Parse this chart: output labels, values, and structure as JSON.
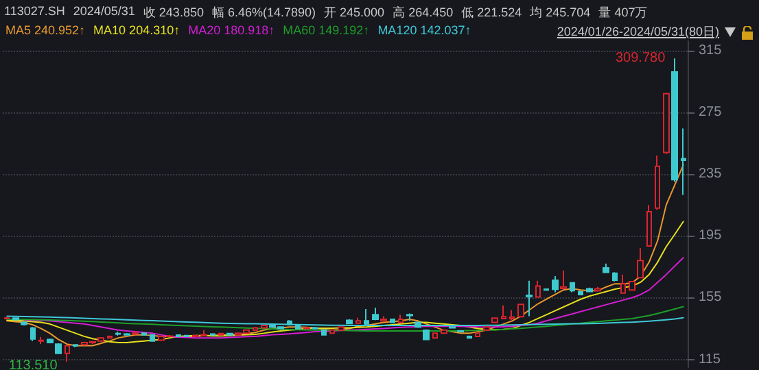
{
  "chart_data": {
    "type": "candlestick",
    "title": "113027.SH",
    "subtitle": "2024/01/26-2024/05/31(80日)",
    "categories": [
      null,
      null,
      null,
      null,
      null,
      null,
      null,
      null,
      null,
      null,
      null,
      null,
      null,
      null,
      null,
      null,
      null,
      null,
      null,
      null,
      null,
      null,
      null,
      null,
      null,
      null,
      null,
      null,
      null,
      null,
      null,
      null,
      null,
      null,
      null,
      null,
      null,
      null,
      null,
      null,
      null,
      null,
      null,
      null,
      null,
      null,
      null,
      null,
      null,
      null,
      null,
      null,
      null,
      null,
      null,
      null,
      null,
      null,
      null,
      null,
      null,
      null,
      null,
      null,
      null,
      null,
      null,
      null,
      null,
      null,
      null,
      null,
      null,
      null,
      null,
      null,
      null,
      null,
      null,
      null
    ],
    "ohlc": [
      [
        141.5,
        142.5,
        141,
        141.8
      ],
      [
        141.8,
        142,
        140.5,
        140.8
      ],
      [
        139,
        139.5,
        137,
        137.7
      ],
      [
        135.4,
        136,
        126.9,
        128.3
      ],
      [
        127,
        129.6,
        125,
        127.4
      ],
      [
        128,
        128.5,
        125.5,
        126
      ],
      [
        125,
        125.5,
        118.5,
        119
      ],
      [
        119,
        124.5,
        113.51,
        124
      ],
      [
        124.5,
        125,
        123,
        123.8
      ],
      [
        124.5,
        126.5,
        124,
        126
      ],
      [
        126,
        127,
        125,
        126.5
      ],
      [
        127,
        129.5,
        126.5,
        129
      ],
      [
        129,
        130.5,
        128.5,
        130
      ],
      [
        131.8,
        133,
        130.5,
        131.5
      ],
      [
        131.5,
        132,
        130.5,
        131
      ],
      [
        131.5,
        133.5,
        131,
        132
      ],
      [
        132,
        132.5,
        130.5,
        131
      ],
      [
        131,
        131.5,
        126.5,
        127
      ],
      [
        127.5,
        130.5,
        127,
        130
      ],
      [
        130,
        130.8,
        129.5,
        130.2
      ],
      [
        130.8,
        131,
        129.5,
        130
      ],
      [
        130.5,
        131,
        129.8,
        130
      ],
      [
        130,
        130.8,
        129.5,
        130.5
      ],
      [
        130.5,
        134,
        130,
        131
      ],
      [
        131.5,
        131.8,
        130.5,
        131
      ],
      [
        131,
        132,
        130.8,
        131.8
      ],
      [
        131.8,
        132,
        130.8,
        131
      ],
      [
        131,
        132.5,
        130.8,
        132
      ],
      [
        132,
        134.5,
        131.8,
        134
      ],
      [
        134,
        136,
        133.5,
        135.5
      ],
      [
        135.5,
        137.5,
        135,
        137
      ],
      [
        137,
        137.5,
        135.5,
        136
      ],
      [
        136,
        136.5,
        134.5,
        135
      ],
      [
        139.8,
        140.5,
        137,
        137.6
      ],
      [
        137,
        137.5,
        134.5,
        135
      ],
      [
        135,
        136,
        134.5,
        135.5
      ],
      [
        135.5,
        136,
        134.5,
        135
      ],
      [
        133.9,
        134.5,
        130.5,
        131
      ],
      [
        132,
        134.5,
        131.5,
        134
      ],
      [
        134,
        136.5,
        133.5,
        136
      ],
      [
        140.4,
        141,
        138,
        138.3
      ],
      [
        138.5,
        142,
        138,
        140
      ],
      [
        140,
        147.7,
        137.5,
        138
      ],
      [
        144,
        148.6,
        140.5,
        141
      ],
      [
        140,
        143,
        139.5,
        141
      ],
      [
        141,
        141.5,
        138.5,
        139
      ],
      [
        139,
        144,
        138.5,
        141
      ],
      [
        144,
        144.8,
        140,
        143.5
      ],
      [
        139,
        139.5,
        135.5,
        136
      ],
      [
        133.9,
        134.5,
        127.5,
        128
      ],
      [
        129,
        132.5,
        128.5,
        132
      ],
      [
        132,
        134.5,
        131.5,
        134
      ],
      [
        136,
        136.5,
        135,
        135.5
      ],
      [
        133.5,
        134,
        132.5,
        133
      ],
      [
        130,
        130.5,
        128.5,
        129
      ],
      [
        130,
        132.5,
        129.5,
        132
      ],
      [
        134,
        136.5,
        133.5,
        136
      ],
      [
        139,
        142,
        138.5,
        141.8
      ],
      [
        141.5,
        150,
        141,
        142.7
      ],
      [
        141.5,
        147,
        140.5,
        142.5
      ],
      [
        142.7,
        151,
        142.5,
        150.7
      ],
      [
        156.5,
        166,
        143,
        155.8
      ],
      [
        155.4,
        166,
        155,
        162.5
      ],
      [
        160.5,
        161,
        159.5,
        160
      ],
      [
        166.3,
        169,
        158.5,
        160.4
      ],
      [
        161,
        172.6,
        160.5,
        162
      ],
      [
        164.6,
        165,
        158.5,
        159.5
      ],
      [
        158.9,
        159.5,
        156.5,
        157
      ],
      [
        160.8,
        161.5,
        158.5,
        159
      ],
      [
        159.5,
        162,
        159,
        160.8
      ],
      [
        174.3,
        177,
        171,
        171.4
      ],
      [
        170.8,
        171.5,
        165.5,
        166.3
      ],
      [
        158,
        170,
        157.5,
        164
      ],
      [
        160,
        165.4,
        159.5,
        165.4
      ],
      [
        168,
        187,
        167.5,
        179
      ],
      [
        188.5,
        215,
        188,
        210.6
      ],
      [
        213,
        247,
        212,
        240
      ],
      [
        249,
        287.5,
        248,
        287
      ],
      [
        301,
        309.78,
        230,
        231.3
      ],
      [
        245,
        264.45,
        221.524,
        243.85
      ]
    ],
    "colors": [
      "#d9252f",
      "#3ec9cf",
      "#3ec9cf",
      "#3ec9cf",
      "#d9252f",
      "#3ec9cf",
      "#3ec9cf",
      "#d9252f",
      "#3ec9cf",
      "#d9252f",
      "#d9252f",
      "#d9252f",
      "#d9252f",
      "#3ec9cf",
      "#3ec9cf",
      "#d9252f",
      "#3ec9cf",
      "#3ec9cf",
      "#d9252f",
      "#d9252f",
      "#3ec9cf",
      "#3ec9cf",
      "#d9252f",
      "#d9252f",
      "#3ec9cf",
      "#d9252f",
      "#3ec9cf",
      "#d9252f",
      "#d9252f",
      "#d9252f",
      "#d9252f",
      "#3ec9cf",
      "#3ec9cf",
      "#3ec9cf",
      "#3ec9cf",
      "#d9252f",
      "#3ec9cf",
      "#3ec9cf",
      "#d9252f",
      "#d9252f",
      "#3ec9cf",
      "#d9252f",
      "#3ec9cf",
      "#3ec9cf",
      "#d9252f",
      "#3ec9cf",
      "#d9252f",
      "#3ec9cf",
      "#3ec9cf",
      "#3ec9cf",
      "#d9252f",
      "#d9252f",
      "#3ec9cf",
      "#3ec9cf",
      "#3ec9cf",
      "#d9252f",
      "#d9252f",
      "#d9252f",
      "#d9252f",
      "#d9252f",
      "#d9252f",
      "#3ec9cf",
      "#d9252f",
      "#3ec9cf",
      "#3ec9cf",
      "#d9252f",
      "#3ec9cf",
      "#3ec9cf",
      "#3ec9cf",
      "#d9252f",
      "#3ec9cf",
      "#3ec9cf",
      "#d9252f",
      "#d9252f",
      "#d9252f",
      "#d9252f",
      "#d9252f",
      "#d9252f",
      "#3ec9cf",
      "#3ec9cf"
    ],
    "series": [
      {
        "type": "line",
        "name": "MA5 240.952↑",
        "color": "#e8992e",
        "values": [
          140,
          139.5,
          139,
          137.5,
          135,
          132,
          128,
          125,
          124,
          124,
          124,
          125.5,
          127,
          129,
          130,
          131,
          131,
          130.5,
          130,
          130,
          129.5,
          129.5,
          130,
          130.5,
          130.5,
          131,
          131,
          131.2,
          131.7,
          132.5,
          134,
          135,
          135.5,
          136,
          136,
          135.8,
          135.5,
          134.5,
          134,
          134.5,
          135,
          136.5,
          137,
          138,
          139,
          139.5,
          140,
          141,
          140,
          138,
          136,
          134,
          133,
          132,
          132,
          133,
          134,
          136,
          138,
          140,
          143,
          147,
          151,
          154,
          157,
          160,
          161,
          160,
          159.5,
          159.5,
          162,
          164,
          164,
          164.5,
          169,
          178,
          192,
          215,
          228,
          240.952
        ]
      },
      {
        "type": "line",
        "name": "MA10 204.310↑",
        "color": "#e6e01e",
        "values": [
          140.5,
          140.3,
          140,
          139.5,
          139,
          138,
          136,
          134,
          132,
          130,
          128.5,
          127.5,
          126.5,
          126,
          126,
          126.5,
          127,
          127.5,
          128,
          129,
          130,
          130.3,
          130.5,
          130.5,
          130.3,
          130.3,
          130.5,
          130.8,
          131,
          131.3,
          132,
          132.8,
          133.5,
          134,
          134.5,
          135,
          135.3,
          135.3,
          135.3,
          135.5,
          135.5,
          135.8,
          136,
          136.5,
          137,
          137.5,
          138,
          138.5,
          139,
          139,
          138.5,
          138,
          137.5,
          137,
          136,
          135,
          134.5,
          134.3,
          134.5,
          135,
          137,
          139,
          141.5,
          144,
          146.5,
          149,
          151.5,
          154,
          156,
          157.5,
          159,
          160.5,
          161.5,
          162.5,
          165,
          170,
          178,
          188,
          196,
          204.31
        ]
      },
      {
        "type": "line",
        "name": "MA20 180.918↑",
        "color": "#d21ed2",
        "values": [
          null,
          null,
          140.6,
          140.4,
          140.2,
          140,
          139.5,
          139,
          138.5,
          138,
          137,
          136,
          135,
          134,
          133.5,
          133,
          132.5,
          132,
          131,
          130,
          129.5,
          129.3,
          129,
          129,
          129,
          129,
          129.3,
          129.5,
          129.8,
          130,
          130.5,
          131,
          131.3,
          131.6,
          132,
          132.5,
          133,
          133.3,
          133.5,
          133.8,
          134,
          134.2,
          134.5,
          134.8,
          135,
          135.5,
          135.8,
          136,
          136.3,
          136.5,
          136.5,
          136.5,
          136.5,
          136.5,
          136.3,
          136,
          136,
          136,
          136.2,
          136.5,
          137,
          137.5,
          138.5,
          140,
          141.5,
          143,
          144.5,
          146,
          147.5,
          149,
          150.5,
          152,
          153.5,
          155,
          157,
          160,
          165,
          170,
          175.5,
          180.918
        ]
      },
      {
        "type": "line",
        "name": "MA60 149.192↑",
        "color": "#1f9e2a",
        "values": [
          141,
          141,
          140.9,
          140.8,
          140.7,
          140.6,
          140.4,
          140.2,
          140,
          139.8,
          139.6,
          139.3,
          139,
          138.7,
          138.4,
          138.2,
          138,
          137.8,
          137.5,
          137.3,
          137,
          136.8,
          136.6,
          136.4,
          136.2,
          136,
          135.8,
          135.6,
          135.4,
          135.2,
          135,
          134.8,
          134.6,
          134.4,
          134.3,
          134.2,
          134.1,
          134,
          133.9,
          133.8,
          133.7,
          133.6,
          133.5,
          133.5,
          133.5,
          133.5,
          133.5,
          133.5,
          133.5,
          133.5,
          133.5,
          133.5,
          133.5,
          133.6,
          133.7,
          133.8,
          134,
          134.2,
          134.5,
          134.8,
          135.2,
          135.6,
          136,
          136.5,
          137,
          137.5,
          138,
          138.5,
          139,
          139.5,
          140,
          140.5,
          141,
          141.5,
          142.5,
          143.5,
          144.8,
          146.2,
          147.7,
          149.192
        ]
      },
      {
        "type": "line",
        "name": "MA120 142.037↑",
        "color": "#3ec8d8",
        "values": [
          143,
          142.9,
          142.8,
          142.7,
          142.6,
          142.5,
          142.3,
          142.1,
          141.9,
          141.7,
          141.5,
          141.3,
          141.1,
          140.9,
          140.7,
          140.5,
          140.3,
          140.1,
          139.9,
          139.7,
          139.5,
          139.3,
          139.1,
          138.9,
          138.7,
          138.5,
          138.4,
          138.3,
          138.2,
          138.1,
          138,
          137.9,
          137.8,
          137.7,
          137.6,
          137.5,
          137.4,
          137.3,
          137.2,
          137.1,
          137,
          137,
          137,
          137,
          137,
          137,
          137,
          137,
          137,
          137,
          137,
          137,
          137,
          137,
          137,
          137,
          137.1,
          137.2,
          137.3,
          137.4,
          137.5,
          137.6,
          137.7,
          137.8,
          137.9,
          138,
          138.1,
          138.2,
          138.3,
          138.4,
          138.6,
          138.8,
          139,
          139.2,
          139.5,
          139.8,
          140.2,
          140.7,
          141.3,
          142.037
        ]
      }
    ],
    "ylim": [
      110,
      321
    ],
    "yticks": [
      115,
      155,
      195,
      235,
      275,
      315
    ],
    "grid": "y",
    "legend": "top left",
    "tick_labels": "y",
    "annotations": [
      "2024/05/31",
      "收 243.850",
      "幅 6.46%(14.7890)",
      "开 245.000",
      "高 264.450",
      "低 221.524",
      "均 245.704",
      "量 407万",
      "309.780",
      "113.510"
    ]
  }
}
